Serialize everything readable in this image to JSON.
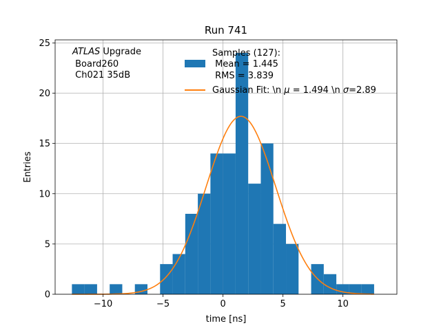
{
  "chart_data": {
    "type": "bar",
    "title": "Run 741",
    "xlabel": "time [ns]",
    "ylabel": "Entries",
    "xlim": [
      -14,
      14.5
    ],
    "ylim": [
      0,
      25.3
    ],
    "grid": true,
    "xticks": [
      -10,
      -5,
      0,
      5,
      10
    ],
    "xtick_labels": [
      "−10",
      "−5",
      "0",
      "5",
      "10"
    ],
    "yticks": [
      0,
      5,
      10,
      15,
      20,
      25
    ],
    "ytick_labels": [
      "0",
      "5",
      "10",
      "15",
      "20",
      "25"
    ],
    "bar_color": "#1f77b4",
    "fit_color": "#ff7f0e",
    "bins": [
      {
        "x0": -12.6,
        "x1": -11.55,
        "count": 1
      },
      {
        "x0": -11.55,
        "x1": -10.5,
        "count": 1
      },
      {
        "x0": -9.45,
        "x1": -8.4,
        "count": 1
      },
      {
        "x0": -7.35,
        "x1": -6.3,
        "count": 1
      },
      {
        "x0": -5.25,
        "x1": -4.2,
        "count": 3
      },
      {
        "x0": -4.2,
        "x1": -3.15,
        "count": 4
      },
      {
        "x0": -3.15,
        "x1": -2.1,
        "count": 8
      },
      {
        "x0": -2.1,
        "x1": -1.05,
        "count": 10
      },
      {
        "x0": -1.05,
        "x1": 0.0,
        "count": 14
      },
      {
        "x0": 0.0,
        "x1": 1.05,
        "count": 14
      },
      {
        "x0": 1.05,
        "x1": 2.1,
        "count": 24
      },
      {
        "x0": 2.1,
        "x1": 3.15,
        "count": 11
      },
      {
        "x0": 3.15,
        "x1": 4.2,
        "count": 15
      },
      {
        "x0": 4.2,
        "x1": 5.25,
        "count": 7
      },
      {
        "x0": 5.25,
        "x1": 6.3,
        "count": 5
      },
      {
        "x0": 7.35,
        "x1": 8.4,
        "count": 3
      },
      {
        "x0": 8.4,
        "x1": 9.45,
        "count": 2
      },
      {
        "x0": 9.45,
        "x1": 10.5,
        "count": 1
      },
      {
        "x0": 10.5,
        "x1": 11.55,
        "count": 1
      },
      {
        "x0": 11.55,
        "x1": 12.6,
        "count": 1
      }
    ],
    "fit": {
      "amplitude": 17.7,
      "mu": 1.494,
      "sigma": 2.89,
      "x_range": [
        -12.6,
        12.6
      ]
    },
    "annotation": {
      "line1_italic": "ATLAS",
      "line1_rest": " Upgrade",
      "line2": " Board260",
      "line3": " Ch021 35dB"
    },
    "legend": {
      "position": "top-right",
      "histogram_label_lines": [
        "Samples (127):",
        " Mean = 1.445",
        " RMS = 3.839"
      ],
      "fit_label_prefix": "Gaussian Fit: \\n ",
      "fit_label_mu_symbol": "μ",
      "fit_label_middle": " = 1.494 \\n ",
      "fit_label_sigma_symbol": "σ",
      "fit_label_suffix": "=2.89"
    }
  }
}
